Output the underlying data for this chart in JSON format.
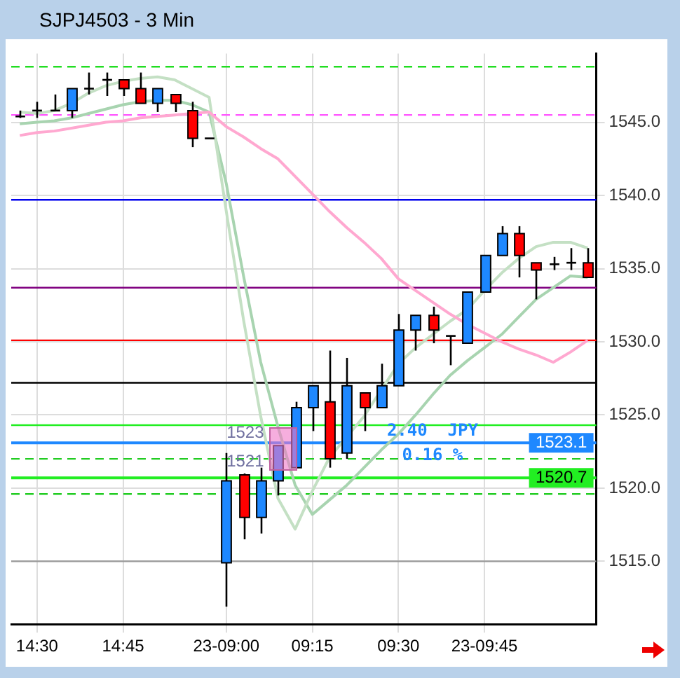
{
  "chart_data": {
    "type": "candlestick",
    "title": "SJPJ4503 - 3 Min",
    "categories": [
      null,
      "14:30",
      null,
      null,
      null,
      null,
      "14:45",
      null,
      null,
      null,
      null,
      null,
      "23-09:00",
      null,
      null,
      null,
      null,
      "09:15",
      null,
      null,
      null,
      null,
      "09:30",
      null,
      null,
      null,
      null,
      "23-09:45",
      null,
      null,
      null,
      null,
      null,
      null
    ],
    "series": [
      {
        "type": "line",
        "color": "#ffa8d0",
        "values": [
          1544.1,
          1544.3,
          1544.4,
          1544.6,
          1544.8,
          1545.0,
          1545.1,
          1545.3,
          1545.4,
          1545.5,
          1545.6,
          1545.7,
          1544.7,
          1544.0,
          1543.2,
          1542.5,
          1541.3,
          1540.1,
          1538.9,
          1537.8,
          1536.8,
          1535.7,
          1534.3,
          1533.5,
          1532.7,
          1531.9,
          1531.2,
          1530.6,
          1530.0,
          1529.5,
          1529.1,
          1528.6,
          1529.3,
          1530.1
        ]
      },
      {
        "type": "line",
        "color": "#c4e0c4",
        "values": [
          1545.7,
          1545.6,
          1545.8,
          1546.3,
          1547.0,
          1547.5,
          1547.8,
          1548.0,
          1548.1,
          1547.9,
          1547.3,
          1546.7,
          1538.9,
          1531.5,
          1524.9,
          1519.3,
          1517.2,
          1519.8,
          1522.1,
          1523.5,
          1524.9,
          1526.7,
          1528.5,
          1529.6,
          1530.5,
          1531.4,
          1532.2,
          1533.5,
          1534.7,
          1535.7,
          1536.5,
          1536.8,
          1536.8,
          1536.4
        ]
      },
      {
        "type": "line",
        "color": "#a8d4b0",
        "values": [
          1544.9,
          1545.0,
          1545.1,
          1545.3,
          1545.6,
          1545.9,
          1546.2,
          1546.4,
          1546.5,
          1546.5,
          1546.2,
          1545.7,
          1540.8,
          1534.5,
          1528.6,
          1524.2,
          1520.2,
          1518.2,
          1519.2,
          1520.2,
          1521.4,
          1522.6,
          1523.7,
          1525.0,
          1526.4,
          1527.7,
          1528.7,
          1529.6,
          1530.5,
          1531.7,
          1532.9,
          1533.7,
          1534.5,
          1534.4
        ]
      },
      {
        "ohlc": [
          [
            1545.4,
            1545.8,
            1545.3,
            1545.4
          ],
          [
            1545.8,
            1546.4,
            1545.3,
            1545.8
          ],
          [
            1545.8,
            1546.9,
            1545.8,
            1545.8
          ],
          [
            1545.8,
            1547.3,
            1545.3,
            1547.3
          ],
          [
            1547.3,
            1548.4,
            1546.9,
            1547.3
          ],
          [
            1547.9,
            1548.4,
            1546.8,
            1547.9
          ],
          [
            1547.9,
            1547.9,
            1546.8,
            1547.3
          ],
          [
            1547.3,
            1548.4,
            1546.3,
            1546.3
          ],
          [
            1546.3,
            1547.3,
            1545.7,
            1547.3
          ],
          [
            1546.9,
            1546.9,
            1545.7,
            1546.3
          ],
          [
            1545.8,
            1546.4,
            1543.3,
            1543.9
          ],
          [
            1543.9,
            1543.9,
            1543.9,
            1543.9
          ],
          [
            1514.9,
            1522.4,
            1511.9,
            1520.5
          ],
          [
            1520.9,
            1521.0,
            1516.5,
            1518.0
          ],
          [
            1518.0,
            1521.4,
            1516.9,
            1520.5
          ],
          [
            1520.5,
            1522.9,
            1519.5,
            1522.9
          ],
          [
            1521.4,
            1525.9,
            1521.4,
            1525.5
          ],
          [
            1525.5,
            1527.0,
            1523.9,
            1527.0
          ],
          [
            1525.9,
            1529.4,
            1521.4,
            1522.0
          ],
          [
            1522.4,
            1528.9,
            1522.0,
            1527.0
          ],
          [
            1526.5,
            1526.5,
            1523.9,
            1525.5
          ],
          [
            1525.5,
            1528.5,
            1525.5,
            1527.0
          ],
          [
            1527.0,
            1531.9,
            1527.0,
            1530.8
          ],
          [
            1530.8,
            1531.8,
            1529.4,
            1531.8
          ],
          [
            1531.8,
            1532.4,
            1529.9,
            1530.8
          ],
          [
            1530.4,
            1530.4,
            1528.4,
            1530.4
          ],
          [
            1529.9,
            1533.4,
            1529.9,
            1533.4
          ],
          [
            1533.4,
            1535.9,
            1533.4,
            1535.9
          ],
          [
            1535.9,
            1537.9,
            1535.9,
            1537.4
          ],
          [
            1537.4,
            1537.9,
            1534.4,
            1535.9
          ],
          [
            1535.4,
            1535.4,
            1532.9,
            1534.9
          ],
          [
            1535.3,
            1535.8,
            1534.9,
            1535.3
          ],
          [
            1535.4,
            1536.4,
            1534.9,
            1535.4
          ],
          [
            1535.4,
            1536.4,
            1534.4,
            1534.4
          ]
        ],
        "colors": [
          "#000000",
          "#000000",
          "#000000",
          "#1e88ff",
          "#000000",
          "#000000",
          "#ff0000",
          "#ff0000",
          "#1e88ff",
          "#ff0000",
          "#ff0000",
          "#000000",
          "#1e88ff",
          "#ff0000",
          "#1e88ff",
          "#1e88ff",
          "#1e88ff",
          "#1e88ff",
          "#ff0000",
          "#1e88ff",
          "#ff0000",
          "#1e88ff",
          "#1e88ff",
          "#1e88ff",
          "#ff0000",
          "#000000",
          "#1e88ff",
          "#1e88ff",
          "#1e88ff",
          "#ff0000",
          "#ff0000",
          "#000000",
          "#000000",
          "#ff0000"
        ]
      }
    ],
    "ylim": [
      1510.7,
      1549.7
    ],
    "yticks": [
      {
        "value": 1515,
        "label": "1515.0"
      },
      {
        "value": 1520,
        "label": "1520.0"
      },
      {
        "value": 1525,
        "label": "1525.0"
      },
      {
        "value": 1530,
        "label": "1530.0"
      },
      {
        "value": 1535,
        "label": "1535.0"
      },
      {
        "value": 1540,
        "label": "1540.0"
      },
      {
        "value": 1545,
        "label": "1545.0"
      }
    ],
    "grid": true,
    "ref_lines": [
      {
        "axis": "y",
        "value": 1548.8,
        "color": "#22dd22",
        "line_style": "dashed"
      },
      {
        "axis": "y",
        "value": 1545.5,
        "color": "#ff55ff",
        "line_style": "dashed"
      },
      {
        "axis": "y",
        "value": 1539.7,
        "color": "#0000ee"
      },
      {
        "axis": "y",
        "value": 1533.7,
        "color": "#800080"
      },
      {
        "axis": "y",
        "value": 1530.1,
        "color": "#ff0000"
      },
      {
        "axis": "y",
        "value": 1527.2,
        "color": "#000000"
      },
      {
        "axis": "y",
        "value": 1524.3,
        "color": "#22ee22"
      },
      {
        "axis": "y",
        "value": 1523.1,
        "color": "#1e88ff",
        "label": "1523.1"
      },
      {
        "axis": "y",
        "value": 1522.0,
        "color": "#22cc22",
        "line_style": "dashed"
      },
      {
        "axis": "y",
        "value": 1520.7,
        "color": "#22ee22",
        "label": "1520.7"
      },
      {
        "axis": "y",
        "value": 1519.6,
        "color": "#22cc22",
        "line_style": "dashed"
      },
      {
        "axis": "y",
        "value": 1515.0,
        "color": "#999999"
      }
    ],
    "annotations": [
      "2.40  JPY",
      "0.16 %",
      "1523",
      "1521"
    ]
  }
}
